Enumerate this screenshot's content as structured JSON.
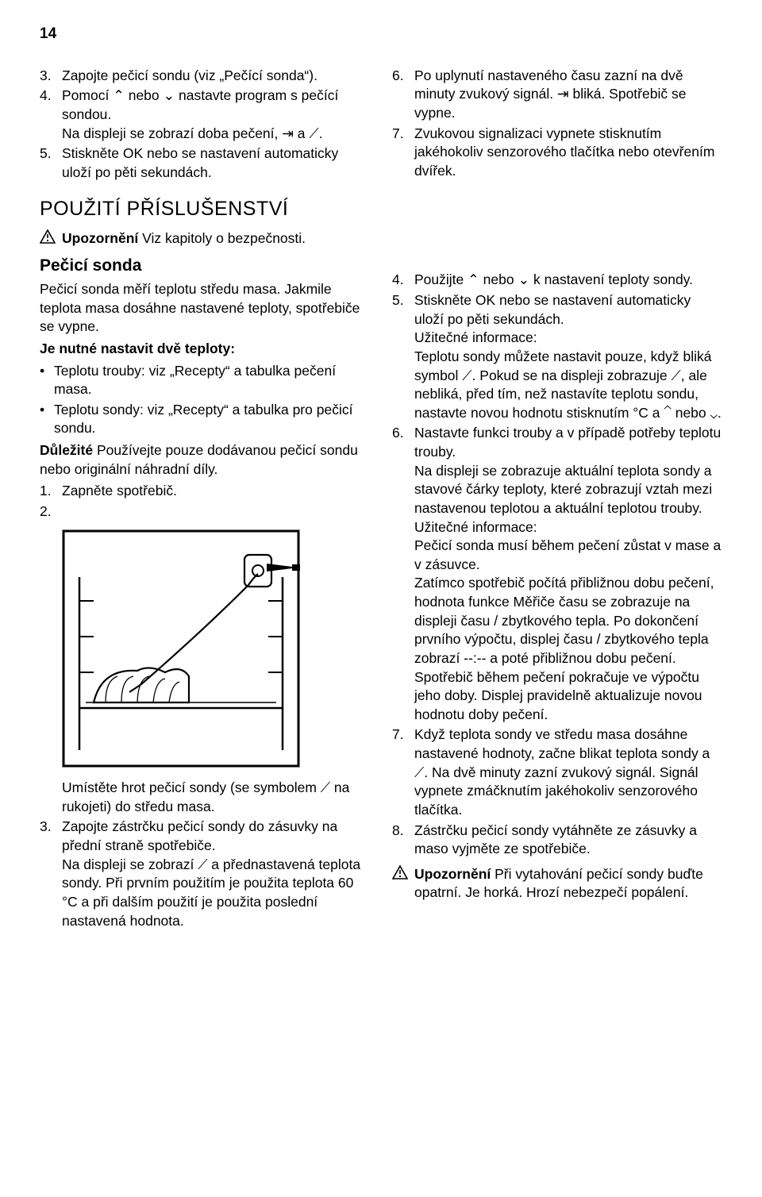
{
  "page_number": "14",
  "left": {
    "ol_a": [
      {
        "n": "3.",
        "t": "Zapojte pečicí sondu (viz „Pečící sonda“)."
      },
      {
        "n": "4.",
        "t": "Pomocí ⌃ nebo ⌄ nastavte program s pečící sondou.\nNa displeji se zobrazí doba pečení, ⇥ a ⟋."
      },
      {
        "n": "5.",
        "t": "Stiskněte OK nebo se nastavení automaticky uloží po pěti sekundách."
      }
    ],
    "section_title": "POUŽITÍ PŘÍSLUŠENSTVÍ",
    "warn_1_bold": "Upozornění",
    "warn_1_rest": " Viz kapitoly o bezpečnosti.",
    "h3": "Pečicí sonda",
    "p1": "Pečicí sonda měří teplotu středu masa. Jakmile teplota masa dosáhne nastavené teploty, spotřebiče se vypne.",
    "p2_bold": "Je nutné nastavit dvě teploty:",
    "ul": [
      "Teplotu trouby: viz „Recepty“ a tabulka pečení masa.",
      "Teplotu sondy: viz „Recepty“ a tabulka pro pečicí sondu."
    ],
    "p3_bold": "Důležité",
    "p3_rest": " Používejte pouze dodávanou pečicí sondu nebo originální náhradní díly.",
    "ol_b_1": {
      "n": "1.",
      "t": "Zapněte spotřebič."
    },
    "ol_b_2": {
      "n": "2.",
      "t": ""
    },
    "after_fig": "Umístěte hrot pečicí sondy (se symbolem ⟋ na rukojeti) do středu masa.",
    "ol_b_3": {
      "n": "3.",
      "t": "Zapojte zástrčku pečicí sondy do zásuvky na přední straně spotřebiče.\nNa displeji se zobrazí ⟋ a přednastavená teplota sondy. Při prvním použitím je použita teplota 60 °C a při dalším použití je použita poslední nastavená hodnota."
    }
  },
  "right": {
    "ol_a": [
      {
        "n": "6.",
        "t": "Po uplynutí nastaveného času zazní na dvě minuty zvukový signál. ⇥ bliká. Spotřebič se vypne."
      },
      {
        "n": "7.",
        "t": "Zvukovou signalizaci vypnete stisknutím jakéhokoliv senzorového tlačítka nebo otevřením dvířek."
      }
    ],
    "ol_b": [
      {
        "n": "4.",
        "t": "Použijte ⌃ nebo ⌄ k nastavení teploty sondy."
      },
      {
        "n": "5.",
        "t": "Stiskněte OK nebo se nastavení automaticky uloží po pěti sekundách.\nUžitečné informace:\nTeplotu sondy můžete nastavit pouze, když bliká symbol ⟋. Pokud se na displeji zobrazuje ⟋, ale nebliká, před tím, než nastavíte teplotu sondu, nastavte novou hodnotu stisknutím °C a ⌃ nebo ⌄."
      },
      {
        "n": "6.",
        "t": "Nastavte funkci trouby a v případě potřeby teplotu trouby.\nNa displeji se zobrazuje aktuální teplota sondy a stavové čárky teploty, které zobrazují vztah mezi nastavenou teplotou a aktuální teplotou trouby.\nUžitečné informace:\nPečicí sonda musí během pečení zůstat v mase a v zásuvce.\nZatímco spotřebič počítá přibližnou dobu pečení, hodnota funkce Měřiče času se zobrazuje na displeji času / zbytkového tepla. Po dokončení prvního výpočtu, displej času / zbytkového tepla zobrazí --:-- a poté přibližnou dobu pečení. Spotřebič během pečení pokračuje ve výpočtu jeho doby. Displej pravidelně aktualizuje novou hodnotu doby pečení."
      },
      {
        "n": "7.",
        "t": "Když teplota sondy ve středu masa dosáhne nastavené hodnoty, začne blikat teplota sondy a ⟋. Na dvě minuty zazní zvukový signál. Signál vypnete zmáčknutím jakéhokoliv senzorového tlačítka."
      },
      {
        "n": "8.",
        "t": "Zástrčku pečicí sondy vytáhněte ze zásuvky a maso vyjměte ze spotřebiče."
      }
    ],
    "warn_2_bold": "Upozornění",
    "warn_2_rest": " Při vytahování pečicí sondy buďte opatrní. Je horká. Hrozí nebezpečí popálení."
  },
  "colors": {
    "text": "#000000",
    "bg": "#ffffff"
  }
}
